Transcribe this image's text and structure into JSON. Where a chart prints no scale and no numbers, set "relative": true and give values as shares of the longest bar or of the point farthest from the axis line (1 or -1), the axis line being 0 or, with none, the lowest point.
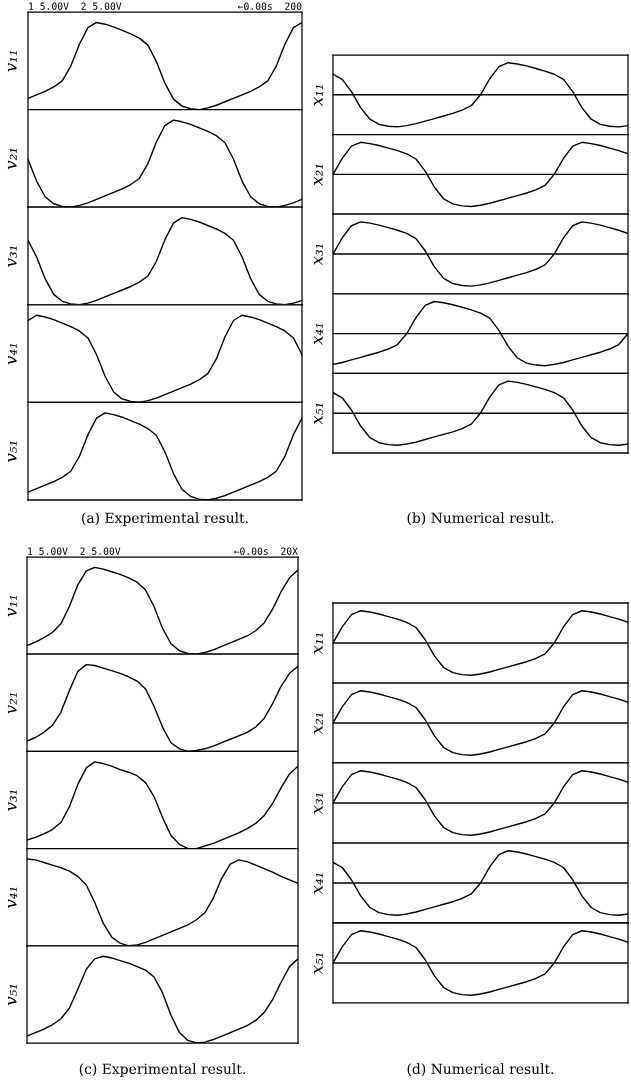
{
  "chart_data": [
    {
      "type": "line",
      "relative": true,
      "ylabel": "v₁₁",
      "annotations": [
        "1 5.00V  2 5.00V",
        "←0.00s  200"
      ],
      "categories": [
        null,
        null,
        null,
        null,
        null,
        null,
        null,
        null,
        null,
        null,
        null,
        null,
        null,
        null,
        null,
        null,
        null,
        null,
        null,
        null,
        null,
        null,
        null,
        null,
        null,
        null,
        null,
        null,
        null,
        null,
        null,
        null,
        null
      ],
      "series": [
        {
          "color": "#000000",
          "values": [
            0.13,
            0.17,
            0.21,
            0.26,
            0.33,
            0.5,
            0.75,
            0.94,
            1.0,
            0.98,
            0.95,
            0.91,
            0.87,
            0.82,
            0.74,
            0.55,
            0.3,
            0.12,
            0.04,
            0.01,
            0.0,
            0.02,
            0.05,
            0.09,
            0.13,
            0.17,
            0.21,
            0.26,
            0.33,
            0.5,
            0.75,
            0.94,
            1.0
          ]
        }
      ]
    },
    {
      "type": "line",
      "relative": true,
      "ylabel": "v₂₁",
      "categories": [
        null,
        null,
        null,
        null,
        null,
        null,
        null,
        null,
        null,
        null,
        null,
        null,
        null,
        null,
        null,
        null,
        null,
        null,
        null,
        null,
        null,
        null,
        null,
        null,
        null,
        null,
        null,
        null,
        null,
        null,
        null,
        null,
        null
      ],
      "series": [
        {
          "color": "#000000",
          "values": [
            0.55,
            0.3,
            0.12,
            0.04,
            0.01,
            0.0,
            0.02,
            0.05,
            0.09,
            0.13,
            0.17,
            0.21,
            0.26,
            0.33,
            0.5,
            0.75,
            0.94,
            1.0,
            0.98,
            0.95,
            0.91,
            0.87,
            0.82,
            0.74,
            0.55,
            0.3,
            0.12,
            0.04,
            0.01,
            0.0,
            0.02,
            0.05,
            0.09
          ]
        }
      ]
    },
    {
      "type": "line",
      "relative": true,
      "ylabel": "v₃₁",
      "categories": [
        null,
        null,
        null,
        null,
        null,
        null,
        null,
        null,
        null,
        null,
        null,
        null,
        null,
        null,
        null,
        null,
        null,
        null,
        null,
        null,
        null,
        null,
        null,
        null,
        null,
        null,
        null,
        null,
        null,
        null,
        null,
        null,
        null
      ],
      "series": [
        {
          "color": "#000000",
          "values": [
            0.74,
            0.55,
            0.3,
            0.12,
            0.04,
            0.01,
            0.0,
            0.02,
            0.05,
            0.09,
            0.13,
            0.17,
            0.21,
            0.26,
            0.33,
            0.5,
            0.75,
            0.94,
            1.0,
            0.98,
            0.95,
            0.91,
            0.87,
            0.82,
            0.74,
            0.55,
            0.3,
            0.12,
            0.04,
            0.01,
            0.0,
            0.02,
            0.05
          ]
        }
      ]
    },
    {
      "type": "line",
      "relative": true,
      "ylabel": "v₄₁",
      "categories": [
        null,
        null,
        null,
        null,
        null,
        null,
        null,
        null,
        null,
        null,
        null,
        null,
        null,
        null,
        null,
        null,
        null,
        null,
        null,
        null,
        null,
        null,
        null,
        null,
        null,
        null,
        null,
        null,
        null,
        null,
        null,
        null,
        null
      ],
      "series": [
        {
          "color": "#000000",
          "values": [
            0.94,
            1.0,
            0.98,
            0.95,
            0.91,
            0.87,
            0.82,
            0.74,
            0.55,
            0.3,
            0.12,
            0.04,
            0.01,
            0.0,
            0.02,
            0.05,
            0.09,
            0.13,
            0.17,
            0.21,
            0.26,
            0.33,
            0.5,
            0.75,
            0.94,
            1.0,
            0.98,
            0.95,
            0.91,
            0.87,
            0.82,
            0.74,
            0.55
          ]
        }
      ]
    },
    {
      "type": "line",
      "relative": true,
      "ylabel": "v₅₁",
      "annotations": [
        "(a) Experimental result."
      ],
      "categories": [
        null,
        null,
        null,
        null,
        null,
        null,
        null,
        null,
        null,
        null,
        null,
        null,
        null,
        null,
        null,
        null,
        null,
        null,
        null,
        null,
        null,
        null,
        null,
        null,
        null,
        null,
        null,
        null,
        null,
        null,
        null,
        null,
        null
      ],
      "series": [
        {
          "color": "#000000",
          "values": [
            0.09,
            0.13,
            0.17,
            0.21,
            0.26,
            0.33,
            0.5,
            0.75,
            0.94,
            1.0,
            0.98,
            0.95,
            0.91,
            0.87,
            0.82,
            0.74,
            0.55,
            0.3,
            0.12,
            0.04,
            0.01,
            0.0,
            0.02,
            0.05,
            0.09,
            0.13,
            0.17,
            0.21,
            0.26,
            0.33,
            0.5,
            0.75,
            0.94
          ]
        }
      ]
    },
    {
      "type": "line",
      "relative": true,
      "ylabel": "x₁₁",
      "categories": [
        null,
        null,
        null,
        null,
        null,
        null,
        null,
        null,
        null,
        null,
        null,
        null,
        null,
        null,
        null,
        null,
        null,
        null,
        null,
        null,
        null,
        null,
        null,
        null,
        null,
        null,
        null,
        null,
        null,
        null,
        null,
        null,
        null
      ],
      "series": [
        {
          "color": "#000000",
          "values": [
            0.64,
            0.48,
            0.1,
            -0.4,
            -0.76,
            -0.92,
            -0.98,
            -1.0,
            -0.96,
            -0.9,
            -0.82,
            -0.74,
            -0.66,
            -0.58,
            -0.48,
            -0.34,
            0.0,
            0.5,
            0.88,
            1.0,
            0.96,
            0.9,
            0.82,
            0.74,
            0.64,
            0.48,
            0.1,
            -0.4,
            -0.76,
            -0.92,
            -0.98,
            -1.0,
            -0.96
          ]
        }
      ]
    },
    {
      "type": "line",
      "relative": true,
      "ylabel": "x₂₁",
      "categories": [
        null,
        null,
        null,
        null,
        null,
        null,
        null,
        null,
        null,
        null,
        null,
        null,
        null,
        null,
        null,
        null,
        null,
        null,
        null,
        null,
        null,
        null,
        null,
        null,
        null,
        null,
        null,
        null,
        null,
        null,
        null,
        null,
        null
      ],
      "series": [
        {
          "color": "#000000",
          "values": [
            0.0,
            0.5,
            0.88,
            1.0,
            0.96,
            0.9,
            0.82,
            0.74,
            0.64,
            0.48,
            0.1,
            -0.4,
            -0.76,
            -0.92,
            -0.98,
            -1.0,
            -0.96,
            -0.9,
            -0.82,
            -0.74,
            -0.66,
            -0.58,
            -0.48,
            -0.34,
            0.0,
            0.5,
            0.88,
            1.0,
            0.96,
            0.9,
            0.82,
            0.74,
            0.64
          ]
        }
      ]
    },
    {
      "type": "line",
      "relative": true,
      "ylabel": "x₃₁",
      "categories": [
        null,
        null,
        null,
        null,
        null,
        null,
        null,
        null,
        null,
        null,
        null,
        null,
        null,
        null,
        null,
        null,
        null,
        null,
        null,
        null,
        null,
        null,
        null,
        null,
        null,
        null,
        null,
        null,
        null,
        null,
        null,
        null,
        null
      ],
      "series": [
        {
          "color": "#000000",
          "values": [
            0.0,
            0.5,
            0.88,
            1.0,
            0.96,
            0.9,
            0.82,
            0.74,
            0.64,
            0.48,
            0.1,
            -0.4,
            -0.76,
            -0.92,
            -0.98,
            -1.0,
            -0.96,
            -0.9,
            -0.82,
            -0.74,
            -0.66,
            -0.58,
            -0.48,
            -0.34,
            0.0,
            0.5,
            0.88,
            1.0,
            0.96,
            0.9,
            0.82,
            0.74,
            0.64
          ]
        }
      ]
    },
    {
      "type": "line",
      "relative": true,
      "ylabel": "x₄₁",
      "categories": [
        null,
        null,
        null,
        null,
        null,
        null,
        null,
        null,
        null,
        null,
        null,
        null,
        null,
        null,
        null,
        null,
        null,
        null,
        null,
        null,
        null,
        null,
        null,
        null,
        null,
        null,
        null,
        null,
        null,
        null,
        null,
        null,
        null
      ],
      "series": [
        {
          "color": "#000000",
          "values": [
            -0.96,
            -0.9,
            -0.82,
            -0.74,
            -0.66,
            -0.58,
            -0.48,
            -0.34,
            0.0,
            0.5,
            0.88,
            1.0,
            0.96,
            0.9,
            0.82,
            0.74,
            0.64,
            0.48,
            0.1,
            -0.4,
            -0.76,
            -0.92,
            -0.98,
            -1.0,
            -0.96,
            -0.9,
            -0.82,
            -0.74,
            -0.66,
            -0.58,
            -0.48,
            -0.34,
            0.0
          ]
        }
      ]
    },
    {
      "type": "line",
      "relative": true,
      "ylabel": "x₅₁",
      "annotations": [
        "(b) Numerical result."
      ],
      "categories": [
        null,
        null,
        null,
        null,
        null,
        null,
        null,
        null,
        null,
        null,
        null,
        null,
        null,
        null,
        null,
        null,
        null,
        null,
        null,
        null,
        null,
        null,
        null,
        null,
        null,
        null,
        null,
        null,
        null,
        null,
        null,
        null,
        null
      ],
      "series": [
        {
          "color": "#000000",
          "values": [
            0.64,
            0.48,
            0.1,
            -0.4,
            -0.76,
            -0.92,
            -0.98,
            -1.0,
            -0.96,
            -0.9,
            -0.82,
            -0.74,
            -0.66,
            -0.58,
            -0.48,
            -0.34,
            0.0,
            0.5,
            0.88,
            1.0,
            0.96,
            0.9,
            0.82,
            0.74,
            0.64,
            0.48,
            0.1,
            -0.4,
            -0.76,
            -0.92,
            -0.98,
            -1.0,
            -0.96
          ]
        }
      ]
    },
    {
      "type": "line",
      "relative": true,
      "ylabel": "v₁₁",
      "annotations": [
        "1 5.00V  2 5.00V",
        "←0.00s  20X"
      ],
      "categories": [
        null,
        null,
        null,
        null,
        null,
        null,
        null,
        null,
        null,
        null,
        null,
        null,
        null,
        null,
        null,
        null,
        null,
        null,
        null,
        null,
        null,
        null,
        null,
        null,
        null,
        null,
        null,
        null,
        null,
        null,
        null,
        null,
        null
      ],
      "series": [
        {
          "color": "#000000",
          "values": [
            0.1,
            0.14,
            0.19,
            0.25,
            0.35,
            0.55,
            0.8,
            0.96,
            1.0,
            0.98,
            0.95,
            0.92,
            0.88,
            0.83,
            0.74,
            0.55,
            0.3,
            0.12,
            0.04,
            0.01,
            0.0,
            0.02,
            0.05,
            0.09,
            0.13,
            0.17,
            0.21,
            0.27,
            0.36,
            0.52,
            0.72,
            0.88,
            0.97
          ]
        }
      ]
    },
    {
      "type": "line",
      "relative": true,
      "ylabel": "v₂₁",
      "categories": [
        null,
        null,
        null,
        null,
        null,
        null,
        null,
        null,
        null,
        null,
        null,
        null,
        null,
        null,
        null,
        null,
        null,
        null,
        null,
        null,
        null,
        null,
        null,
        null,
        null,
        null,
        null,
        null,
        null,
        null,
        null,
        null,
        null
      ],
      "series": [
        {
          "color": "#000000",
          "values": [
            0.12,
            0.16,
            0.22,
            0.3,
            0.45,
            0.7,
            0.92,
            1.0,
            0.99,
            0.96,
            0.93,
            0.9,
            0.86,
            0.81,
            0.72,
            0.52,
            0.28,
            0.1,
            0.03,
            0.0,
            0.01,
            0.03,
            0.06,
            0.1,
            0.14,
            0.18,
            0.22,
            0.28,
            0.38,
            0.55,
            0.75,
            0.9,
            0.98
          ]
        }
      ]
    },
    {
      "type": "line",
      "relative": true,
      "ylabel": "v₃₁",
      "categories": [
        null,
        null,
        null,
        null,
        null,
        null,
        null,
        null,
        null,
        null,
        null,
        null,
        null,
        null,
        null,
        null,
        null,
        null,
        null,
        null,
        null,
        null,
        null,
        null,
        null,
        null,
        null,
        null,
        null,
        null,
        null,
        null,
        null
      ],
      "series": [
        {
          "color": "#000000",
          "values": [
            0.1,
            0.13,
            0.17,
            0.22,
            0.3,
            0.48,
            0.74,
            0.93,
            1.0,
            0.98,
            0.95,
            0.91,
            0.88,
            0.84,
            0.76,
            0.6,
            0.36,
            0.15,
            0.05,
            0.0,
            0.0,
            0.03,
            0.06,
            0.1,
            0.14,
            0.18,
            0.23,
            0.29,
            0.38,
            0.52,
            0.7,
            0.86,
            0.95
          ]
        }
      ]
    },
    {
      "type": "line",
      "relative": true,
      "ylabel": "v₄₁",
      "categories": [
        null,
        null,
        null,
        null,
        null,
        null,
        null,
        null,
        null,
        null,
        null,
        null,
        null,
        null,
        null,
        null,
        null,
        null,
        null,
        null,
        null,
        null,
        null,
        null,
        null,
        null,
        null,
        null,
        null,
        null,
        null,
        null,
        null
      ],
      "series": [
        {
          "color": "#000000",
          "values": [
            1.0,
            0.99,
            0.96,
            0.93,
            0.9,
            0.86,
            0.8,
            0.7,
            0.5,
            0.26,
            0.1,
            0.03,
            0.0,
            0.01,
            0.04,
            0.08,
            0.12,
            0.16,
            0.2,
            0.24,
            0.3,
            0.38,
            0.55,
            0.78,
            0.94,
            0.99,
            0.97,
            0.93,
            0.89,
            0.85,
            0.8,
            0.76,
            0.72
          ]
        }
      ]
    },
    {
      "type": "line",
      "relative": true,
      "ylabel": "v₅₁",
      "annotations": [
        "(c) Experimental result."
      ],
      "categories": [
        null,
        null,
        null,
        null,
        null,
        null,
        null,
        null,
        null,
        null,
        null,
        null,
        null,
        null,
        null,
        null,
        null,
        null,
        null,
        null,
        null,
        null,
        null,
        null,
        null,
        null,
        null,
        null,
        null,
        null,
        null,
        null,
        null
      ],
      "series": [
        {
          "color": "#000000",
          "values": [
            0.08,
            0.12,
            0.16,
            0.21,
            0.28,
            0.4,
            0.62,
            0.85,
            0.97,
            1.0,
            0.98,
            0.95,
            0.92,
            0.88,
            0.84,
            0.76,
            0.58,
            0.32,
            0.12,
            0.03,
            0.0,
            0.01,
            0.04,
            0.08,
            0.12,
            0.16,
            0.2,
            0.26,
            0.35,
            0.5,
            0.7,
            0.88,
            0.97
          ]
        }
      ]
    },
    {
      "type": "line",
      "relative": true,
      "ylabel": "x₁₁",
      "categories": [
        null,
        null,
        null,
        null,
        null,
        null,
        null,
        null,
        null,
        null,
        null,
        null,
        null,
        null,
        null,
        null,
        null,
        null,
        null,
        null,
        null,
        null,
        null,
        null,
        null,
        null,
        null,
        null,
        null,
        null,
        null,
        null,
        null
      ],
      "series": [
        {
          "color": "#000000",
          "values": [
            0.0,
            0.5,
            0.88,
            1.0,
            0.96,
            0.9,
            0.82,
            0.74,
            0.64,
            0.48,
            0.1,
            -0.4,
            -0.76,
            -0.92,
            -0.98,
            -1.0,
            -0.96,
            -0.9,
            -0.82,
            -0.74,
            -0.66,
            -0.58,
            -0.48,
            -0.34,
            0.0,
            0.5,
            0.88,
            1.0,
            0.96,
            0.9,
            0.82,
            0.74,
            0.64
          ]
        }
      ]
    },
    {
      "type": "line",
      "relative": true,
      "ylabel": "x₂₁",
      "categories": [
        null,
        null,
        null,
        null,
        null,
        null,
        null,
        null,
        null,
        null,
        null,
        null,
        null,
        null,
        null,
        null,
        null,
        null,
        null,
        null,
        null,
        null,
        null,
        null,
        null,
        null,
        null,
        null,
        null,
        null,
        null,
        null,
        null
      ],
      "series": [
        {
          "color": "#000000",
          "values": [
            0.0,
            0.5,
            0.88,
            1.0,
            0.96,
            0.9,
            0.82,
            0.74,
            0.64,
            0.48,
            0.1,
            -0.4,
            -0.76,
            -0.92,
            -0.98,
            -1.0,
            -0.96,
            -0.9,
            -0.82,
            -0.74,
            -0.66,
            -0.58,
            -0.48,
            -0.34,
            0.0,
            0.5,
            0.88,
            1.0,
            0.96,
            0.9,
            0.82,
            0.74,
            0.64
          ]
        }
      ]
    },
    {
      "type": "line",
      "relative": true,
      "ylabel": "x₃₁",
      "categories": [
        null,
        null,
        null,
        null,
        null,
        null,
        null,
        null,
        null,
        null,
        null,
        null,
        null,
        null,
        null,
        null,
        null,
        null,
        null,
        null,
        null,
        null,
        null,
        null,
        null,
        null,
        null,
        null,
        null,
        null,
        null,
        null,
        null
      ],
      "series": [
        {
          "color": "#000000",
          "values": [
            0.0,
            0.5,
            0.88,
            1.0,
            0.96,
            0.9,
            0.82,
            0.74,
            0.64,
            0.48,
            0.1,
            -0.4,
            -0.76,
            -0.92,
            -0.98,
            -1.0,
            -0.96,
            -0.9,
            -0.82,
            -0.74,
            -0.66,
            -0.58,
            -0.48,
            -0.34,
            0.0,
            0.5,
            0.88,
            1.0,
            0.96,
            0.9,
            0.82,
            0.74,
            0.64
          ]
        }
      ]
    },
    {
      "type": "line",
      "relative": true,
      "ylabel": "x₄₁",
      "categories": [
        null,
        null,
        null,
        null,
        null,
        null,
        null,
        null,
        null,
        null,
        null,
        null,
        null,
        null,
        null,
        null,
        null,
        null,
        null,
        null,
        null,
        null,
        null,
        null,
        null,
        null,
        null,
        null,
        null,
        null,
        null,
        null,
        null
      ],
      "series": [
        {
          "color": "#000000",
          "values": [
            0.64,
            0.48,
            0.1,
            -0.4,
            -0.76,
            -0.92,
            -0.98,
            -1.0,
            -0.96,
            -0.9,
            -0.82,
            -0.74,
            -0.66,
            -0.58,
            -0.48,
            -0.34,
            0.0,
            0.5,
            0.88,
            1.0,
            0.96,
            0.9,
            0.82,
            0.74,
            0.64,
            0.48,
            0.1,
            -0.4,
            -0.76,
            -0.92,
            -0.98,
            -1.0,
            -0.96
          ]
        }
      ]
    },
    {
      "type": "line",
      "relative": true,
      "ylabel": "x₅₁",
      "annotations": [
        "(d) Numerical result."
      ],
      "categories": [
        null,
        null,
        null,
        null,
        null,
        null,
        null,
        null,
        null,
        null,
        null,
        null,
        null,
        null,
        null,
        null,
        null,
        null,
        null,
        null,
        null,
        null,
        null,
        null,
        null,
        null,
        null,
        null,
        null,
        null,
        null,
        null,
        null
      ],
      "series": [
        {
          "color": "#000000",
          "values": [
            0.0,
            0.5,
            0.88,
            1.0,
            0.96,
            0.9,
            0.82,
            0.74,
            0.64,
            0.48,
            0.1,
            -0.4,
            -0.76,
            -0.92,
            -0.98,
            -1.0,
            -0.96,
            -0.9,
            -0.82,
            -0.74,
            -0.66,
            -0.58,
            -0.48,
            -0.34,
            0.0,
            0.5,
            0.88,
            1.0,
            0.96,
            0.9,
            0.82,
            0.74,
            0.64
          ]
        }
      ]
    }
  ]
}
